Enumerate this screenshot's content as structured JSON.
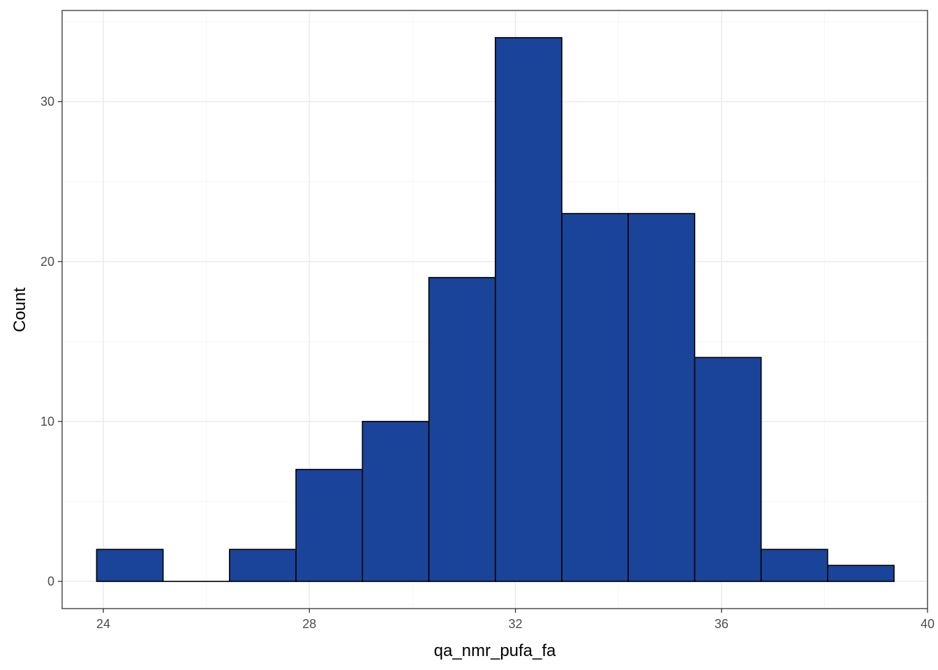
{
  "chart_data": {
    "type": "bar",
    "subtype": "histogram",
    "xlabel": "qa_nmr_pufa_fa",
    "ylabel": "Count",
    "xlim": [
      23.2,
      40.0
    ],
    "ylim": [
      -1.7,
      35.7
    ],
    "x_ticks": [
      24,
      28,
      32,
      36,
      40
    ],
    "y_ticks": [
      0,
      10,
      20,
      30
    ],
    "bin_edges": [
      23.87,
      25.16,
      26.45,
      27.74,
      29.03,
      30.32,
      31.61,
      32.9,
      34.19,
      35.48,
      36.77,
      38.06,
      39.35
    ],
    "values": [
      2,
      0,
      2,
      7,
      10,
      19,
      34,
      23,
      23,
      14,
      2,
      1
    ],
    "grid": true,
    "theme": "bw",
    "colors": {
      "fill": "#1a4499",
      "bar_outline": "#000000",
      "grid_major": "#ebebeb",
      "grid_minor": "#f5f5f5",
      "panel_border": "#333333"
    }
  }
}
